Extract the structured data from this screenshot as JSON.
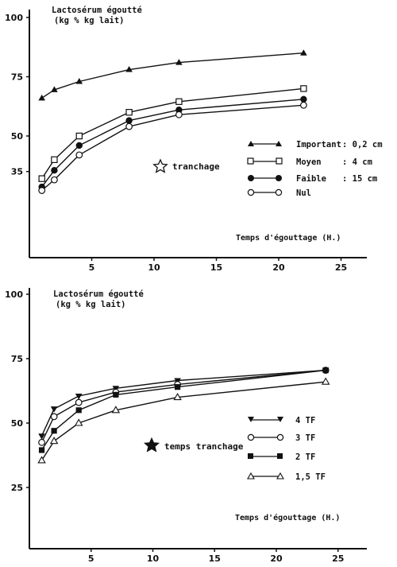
{
  "chart_data": [
    {
      "type": "line",
      "title_line1": "Lactosérum égoutté",
      "title_line2": "(kg % kg lait)",
      "xlabel": "Temps d'égouttage (H.)",
      "annotation": "tranchage",
      "xlim": [
        0,
        27
      ],
      "ylim": [
        20,
        100
      ],
      "x_ticks": [
        5,
        10,
        15,
        20,
        25
      ],
      "y_ticks": [
        35,
        50,
        75,
        100
      ],
      "series": [
        {
          "name": "Important",
          "legend_value": ": 0,2 cm",
          "marker": "triangle-filled",
          "points": [
            [
              1,
              66
            ],
            [
              2,
              69.5
            ],
            [
              4,
              73
            ],
            [
              8,
              78
            ],
            [
              12,
              81
            ],
            [
              22,
              85
            ]
          ]
        },
        {
          "name": "Moyen",
          "legend_value": ":   4  cm",
          "marker": "square-open",
          "points": [
            [
              1,
              32
            ],
            [
              2,
              40
            ],
            [
              4,
              50
            ],
            [
              8,
              60
            ],
            [
              12,
              64.5
            ],
            [
              22,
              70
            ]
          ]
        },
        {
          "name": "Faible",
          "legend_value": ":  15  cm",
          "marker": "circle-filled",
          "points": [
            [
              1,
              28.5
            ],
            [
              2,
              35.5
            ],
            [
              4,
              46
            ],
            [
              8,
              56.5
            ],
            [
              12,
              61
            ],
            [
              22,
              65.5
            ]
          ]
        },
        {
          "name": "Nul",
          "legend_value": "",
          "marker": "circle-open",
          "points": [
            [
              1,
              27
            ],
            [
              2,
              31.5
            ],
            [
              4,
              42
            ],
            [
              8,
              54
            ],
            [
              12,
              59
            ],
            [
              22,
              63
            ]
          ]
        }
      ]
    },
    {
      "type": "line",
      "title_line1": "Lactosérum égoutté",
      "title_line2": "(kg % kg lait)",
      "xlabel": "Temps d'égouttage (H.)",
      "annotation": "temps tranchage",
      "xlim": [
        0,
        27
      ],
      "ylim": [
        0,
        100
      ],
      "x_ticks": [
        5,
        10,
        15,
        20,
        25
      ],
      "y_ticks": [
        25,
        50,
        75,
        100
      ],
      "series": [
        {
          "name": "4 TF",
          "marker": "triangle-down-filled",
          "points": [
            [
              1,
              45
            ],
            [
              2,
              55.5
            ],
            [
              4,
              60.5
            ],
            [
              7,
              63.5
            ],
            [
              12,
              66.5
            ],
            [
              24,
              70.5
            ]
          ]
        },
        {
          "name": "3 TF",
          "marker": "circle-open",
          "points": [
            [
              1,
              42.5
            ],
            [
              2,
              52.5
            ],
            [
              4,
              58
            ],
            [
              7,
              62
            ],
            [
              12,
              65
            ],
            [
              24,
              70.5
            ]
          ]
        },
        {
          "name": "2 TF",
          "marker": "square-filled",
          "points": [
            [
              1,
              39.5
            ],
            [
              2,
              47
            ],
            [
              4,
              55
            ],
            [
              7,
              61
            ],
            [
              12,
              64
            ],
            [
              24,
              70.5
            ]
          ]
        },
        {
          "name": "1,5 TF",
          "marker": "triangle-open",
          "points": [
            [
              1,
              35.5
            ],
            [
              2,
              43
            ],
            [
              4,
              50
            ],
            [
              7,
              55
            ],
            [
              12,
              60
            ],
            [
              24,
              66
            ]
          ]
        }
      ]
    }
  ]
}
